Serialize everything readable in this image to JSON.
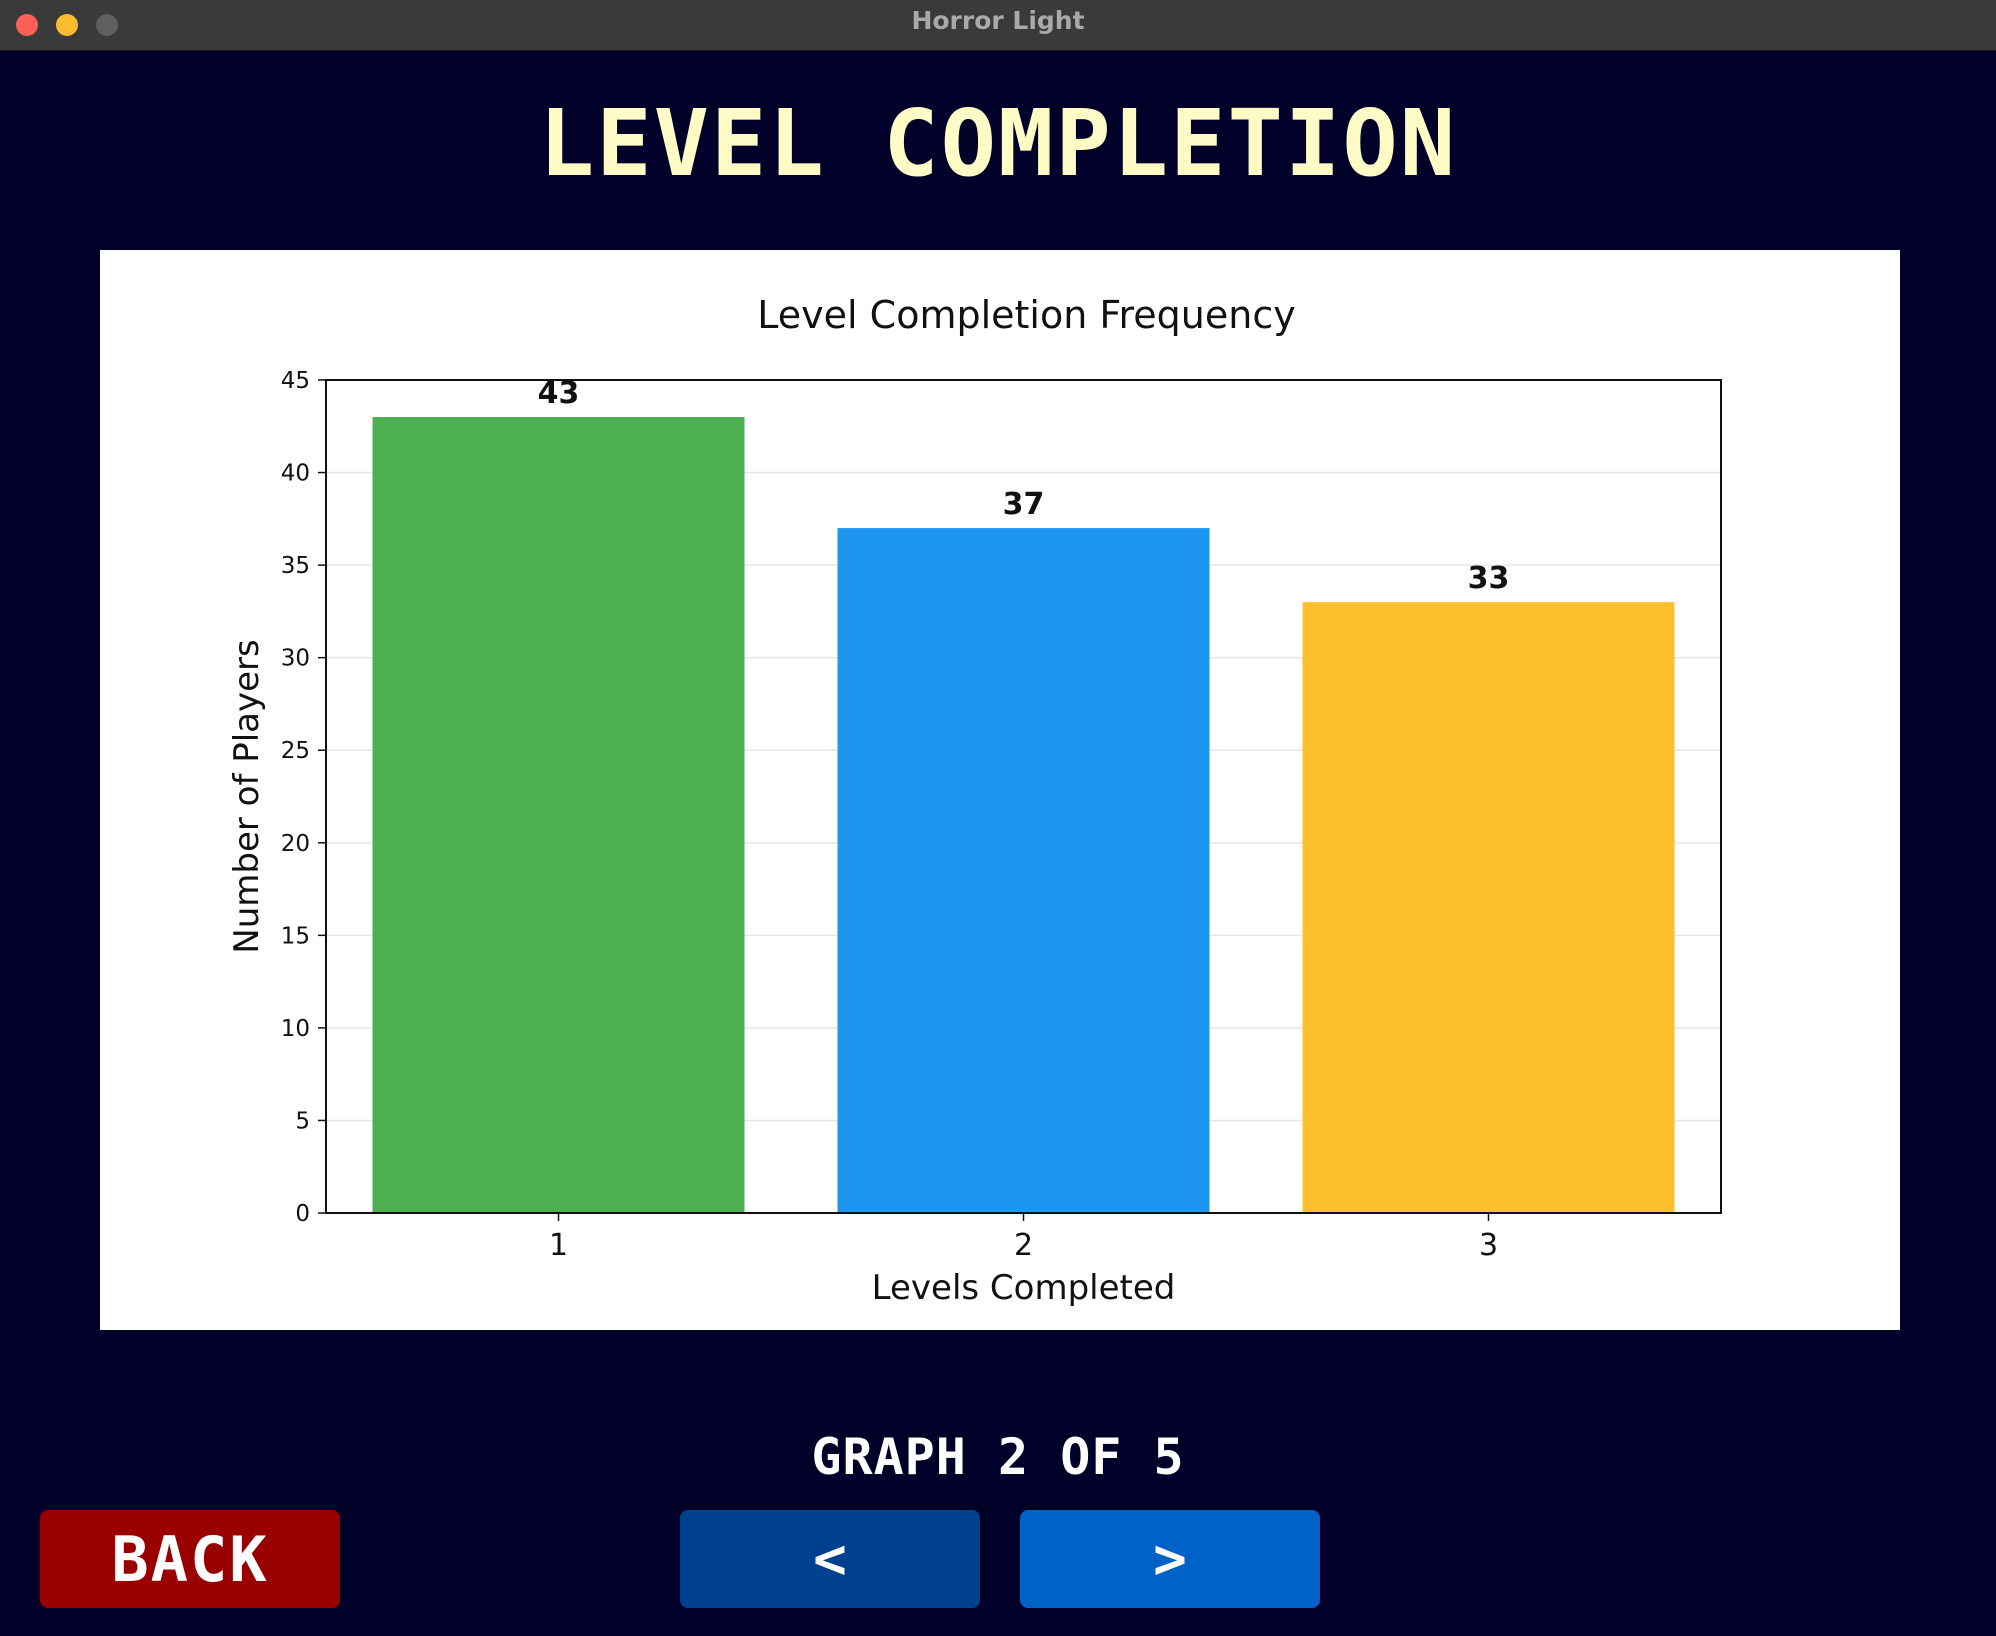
{
  "window": {
    "title": "Horror Light"
  },
  "screen": {
    "heading": "LEVEL COMPLETION",
    "pager": "GRAPH 2 OF 5"
  },
  "buttons": {
    "back_label": "BACK",
    "prev_label": "<",
    "next_label": ">"
  },
  "colors": {
    "background": "#000028",
    "heading": "#fffbc7",
    "back_button": "#990000",
    "prev_button": "#00418f",
    "next_button": "#0062c6"
  },
  "chart_data": {
    "type": "bar",
    "title": "Level Completion Frequency",
    "xlabel": "Levels Completed",
    "ylabel": "Number of Players",
    "categories": [
      "1",
      "2",
      "3"
    ],
    "values": [
      43,
      37,
      33
    ],
    "data_labels": [
      "43",
      "37",
      "33"
    ],
    "bar_colors": [
      "#4caf50",
      "#1e96ef",
      "#fec02c"
    ],
    "ylim": [
      0,
      45
    ],
    "yticks": [
      0,
      5,
      10,
      15,
      20,
      25,
      30,
      35,
      40,
      45
    ],
    "grid": "y"
  }
}
